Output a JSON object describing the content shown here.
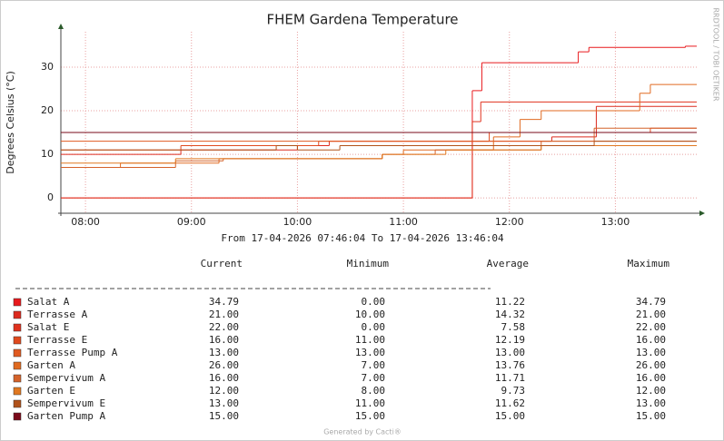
{
  "chart_data": {
    "type": "step-line",
    "title": "FHEM Gardena Temperature",
    "subtitle": "From 17-04-2026 07:46:04 To 17-04-2026 13:46:04",
    "y_label": "Degrees Celsius (°C)",
    "watermark": "RRDTOOL / TOBI OETIKER",
    "footer": "Generated by Cacti®",
    "grid": true,
    "xlim": [
      7.7678,
      13.7678
    ],
    "xticks": [
      {
        "value": 8,
        "label": "08:00"
      },
      {
        "value": 9,
        "label": "09:00"
      },
      {
        "value": 10,
        "label": "10:00"
      },
      {
        "value": 11,
        "label": "11:00"
      },
      {
        "value": 12,
        "label": "12:00"
      },
      {
        "value": 13,
        "label": "13:00"
      }
    ],
    "ylim": [
      -3.5,
      38.1
    ],
    "yticks": [
      0,
      10,
      20,
      30
    ],
    "stat_headers": [
      "Current",
      "Minimum",
      "Average",
      "Maximum"
    ],
    "series": [
      {
        "name": "Salat A",
        "color": "#e8191c",
        "x": [
          7.7678,
          11.65,
          11.74,
          12.65,
          12.75,
          13.66
        ],
        "values": [
          0,
          24.6,
          31,
          33.5,
          34.5,
          34.79
        ],
        "stats": [
          "34.79",
          "0.00",
          "11.22",
          "34.79"
        ]
      },
      {
        "name": "Terrasse A",
        "color": "#dc2a1e",
        "x": [
          7.7678,
          8.9,
          10.0,
          10.3,
          12.4,
          12.82
        ],
        "values": [
          10,
          11,
          12,
          13,
          14,
          21
        ],
        "stats": [
          "21.00",
          "10.00",
          "14.32",
          "21.00"
        ]
      },
      {
        "name": "Salat E",
        "color": "#e0321e",
        "x": [
          7.7678,
          11.65,
          11.73
        ],
        "values": [
          0,
          17.5,
          22
        ],
        "stats": [
          "22.00",
          "0.00",
          "7.58",
          "22.00"
        ]
      },
      {
        "name": "Terrasse E",
        "color": "#e04a1e",
        "x": [
          7.7678,
          8.9,
          10.2,
          11.81,
          13.33
        ],
        "values": [
          11,
          12,
          13,
          15,
          16
        ],
        "stats": [
          "16.00",
          "11.00",
          "12.19",
          "16.00"
        ]
      },
      {
        "name": "Terrasse Pump A",
        "color": "#e05a20",
        "x": [
          7.7678
        ],
        "values": [
          13
        ],
        "stats": [
          "13.00",
          "13.00",
          "13.00",
          "13.00"
        ]
      },
      {
        "name": "Garten A",
        "color": "#e06a20",
        "x": [
          7.7678,
          8.33,
          9.26,
          10.8,
          11.0,
          11.85,
          12.1,
          12.3,
          13.23,
          13.33
        ],
        "values": [
          7,
          8,
          9,
          10,
          11,
          14,
          18,
          20,
          24,
          26
        ],
        "stats": [
          "26.00",
          "7.00",
          "13.76",
          "26.00"
        ]
      },
      {
        "name": "Sempervivum A",
        "color": "#d4622a",
        "x": [
          7.7678,
          8.85,
          9.3,
          10.8,
          11.3,
          12.3,
          12.8
        ],
        "values": [
          7,
          8.5,
          9,
          10,
          11,
          13,
          16
        ],
        "stats": [
          "16.00",
          "7.00",
          "11.71",
          "16.00"
        ]
      },
      {
        "name": "Garten E",
        "color": "#e07820",
        "x": [
          7.7678,
          8.85,
          10.8,
          11.4,
          12.3
        ],
        "values": [
          8,
          9,
          10,
          11,
          12
        ],
        "stats": [
          "12.00",
          "8.00",
          "9.73",
          "12.00"
        ]
      },
      {
        "name": "Sempervivum E",
        "color": "#b0521a",
        "x": [
          7.7678,
          9.8,
          10.0,
          10.4,
          12.8
        ],
        "values": [
          11,
          12,
          11,
          12,
          13
        ],
        "stats": [
          "13.00",
          "11.00",
          "11.62",
          "13.00"
        ]
      },
      {
        "name": "Garten Pump A",
        "color": "#7a0a1a",
        "x": [
          7.7678
        ],
        "values": [
          15
        ],
        "stats": [
          "15.00",
          "15.00",
          "15.00",
          "15.00"
        ]
      }
    ]
  }
}
